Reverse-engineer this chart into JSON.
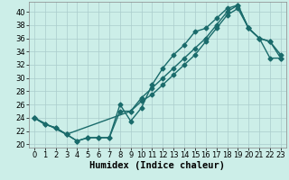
{
  "xlabel": "Humidex (Indice chaleur)",
  "bg_color": "#cceee8",
  "grid_color": "#aacccc",
  "line_color": "#1a6b6b",
  "ylim": [
    19.5,
    41.5
  ],
  "xlim": [
    -0.5,
    23.5
  ],
  "yticks": [
    20,
    22,
    24,
    26,
    28,
    30,
    32,
    34,
    36,
    38,
    40
  ],
  "xticks": [
    0,
    1,
    2,
    3,
    4,
    5,
    6,
    7,
    8,
    9,
    10,
    11,
    12,
    13,
    14,
    15,
    16,
    17,
    18,
    19,
    20,
    21,
    22,
    23
  ],
  "line1_x": [
    0,
    1,
    2,
    3,
    4,
    5,
    6,
    7,
    8,
    9,
    10,
    11,
    12,
    13,
    14,
    15,
    16,
    17,
    18,
    19,
    20,
    21,
    22,
    23
  ],
  "line1_y": [
    24.0,
    23.0,
    22.5,
    21.5,
    20.5,
    21.0,
    21.0,
    21.0,
    26.0,
    23.5,
    25.5,
    29.0,
    31.5,
    33.5,
    35.0,
    37.0,
    37.5,
    39.0,
    40.5,
    41.0,
    37.5,
    36.0,
    35.5,
    33.5
  ],
  "line2_x": [
    0,
    1,
    2,
    3,
    4,
    5,
    6,
    7,
    8,
    9,
    10,
    11,
    12,
    13,
    14,
    15,
    16,
    17,
    18,
    19,
    20,
    21,
    22,
    23
  ],
  "line2_y": [
    24.0,
    23.0,
    22.5,
    21.5,
    20.5,
    21.0,
    21.0,
    21.0,
    25.0,
    25.0,
    27.0,
    28.5,
    30.0,
    31.5,
    33.0,
    34.5,
    36.0,
    38.0,
    40.0,
    41.0,
    37.5,
    36.0,
    35.5,
    33.0
  ],
  "line3_x": [
    0,
    3,
    9,
    10,
    11,
    12,
    13,
    14,
    15,
    16,
    17,
    18,
    19,
    20,
    21,
    22,
    23
  ],
  "line3_y": [
    24.0,
    21.5,
    25.0,
    26.5,
    27.5,
    29.0,
    30.5,
    32.0,
    33.5,
    35.5,
    37.5,
    39.5,
    40.5,
    37.5,
    36.0,
    33.0,
    33.0
  ],
  "markersize": 2.5,
  "linewidth": 1.0,
  "xlabel_fontsize": 7.5,
  "tick_fontsize": 6.0
}
